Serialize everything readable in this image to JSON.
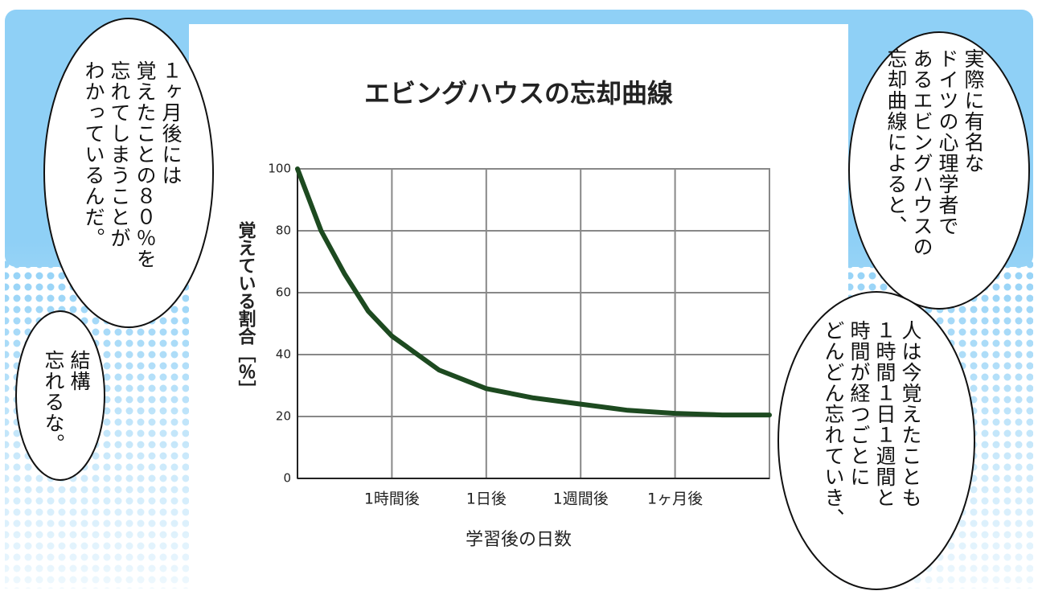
{
  "chart_data": {
    "type": "line",
    "title": "エビングハウスの忘却曲線",
    "x_label": "学習後の日数",
    "y_label": "覚えている割合［％］",
    "x": [
      0,
      0.25,
      0.5,
      0.75,
      1,
      1.5,
      2,
      2.5,
      3,
      3.5,
      4,
      4.5,
      5
    ],
    "series": [
      {
        "color": "#1d4a20",
        "values": [
          100,
          80,
          66,
          54,
          46,
          35,
          29,
          26,
          24,
          22,
          21,
          20.5,
          20.5
        ]
      }
    ],
    "xlim": [
      0,
      5
    ],
    "xticks": [
      {
        "value": 1,
        "label": "1時間後"
      },
      {
        "value": 2,
        "label": "1日後"
      },
      {
        "value": 3,
        "label": "1週間後"
      },
      {
        "value": 4,
        "label": "1ヶ月後"
      }
    ],
    "ylim": [
      0,
      100
    ],
    "yticks": [
      0,
      20,
      40,
      60,
      80,
      100
    ],
    "grid": true
  },
  "bubbles": [
    {
      "lines": [
        "１ヶ月後には",
        "覚えたことの８０％を",
        "忘れてしまうことが",
        "わかっているんだ。"
      ]
    },
    {
      "lines": [
        "結構",
        "忘れるな。"
      ]
    },
    {
      "lines": [
        "実際に有名な",
        "ドイツの心理学者で",
        "あるエビングハウスの",
        "忘却曲線によると、"
      ]
    },
    {
      "lines": [
        "人は今覚えたことも",
        "１時間１日１週間と",
        "時間が経つごとに",
        "どんどん忘れていき、"
      ]
    }
  ]
}
